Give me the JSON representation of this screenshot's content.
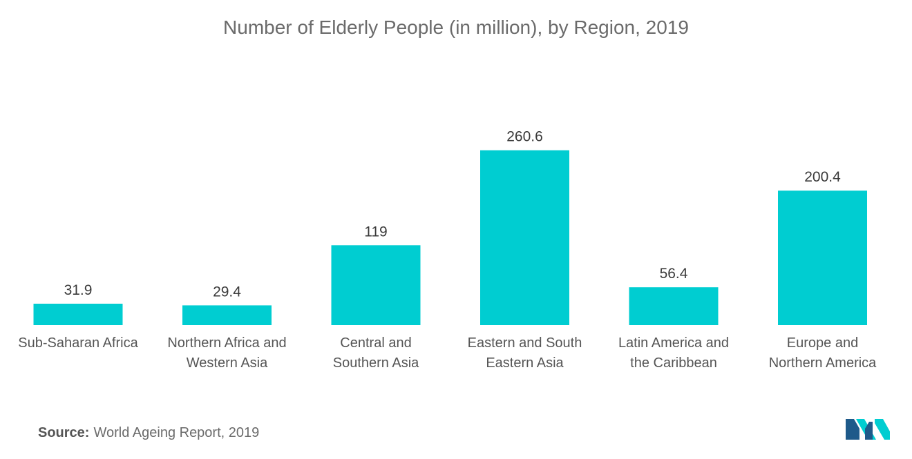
{
  "colors": {
    "bar": "#00cdd1",
    "logo_dark": "#1e5a8a",
    "logo_light": "#00cdd1"
  },
  "source": {
    "label": "Source:",
    "text": "World Ageing Report, 2019"
  },
  "logo_icon": "mordor-intelligence-logo-icon",
  "chart_data": {
    "type": "bar",
    "title": "Number of Elderly People (in million), by Region, 2019",
    "xlabel": "",
    "ylabel": "",
    "ylim": [
      0,
      300
    ],
    "grid": false,
    "categories": [
      [
        "Sub-Saharan Africa"
      ],
      [
        "Northern Africa and",
        "Western Asia"
      ],
      [
        "Central and",
        "Southern Asia"
      ],
      [
        "Eastern and South",
        "Eastern Asia"
      ],
      [
        "Latin America and",
        "the Caribbean"
      ],
      [
        "Europe and",
        "Northern America"
      ]
    ],
    "value_labels": [
      "31.9",
      "29.4",
      "119",
      "260.6",
      "56.4",
      "200.4"
    ],
    "values": [
      31.9,
      29.4,
      119,
      260.6,
      56.4,
      200.4
    ]
  }
}
